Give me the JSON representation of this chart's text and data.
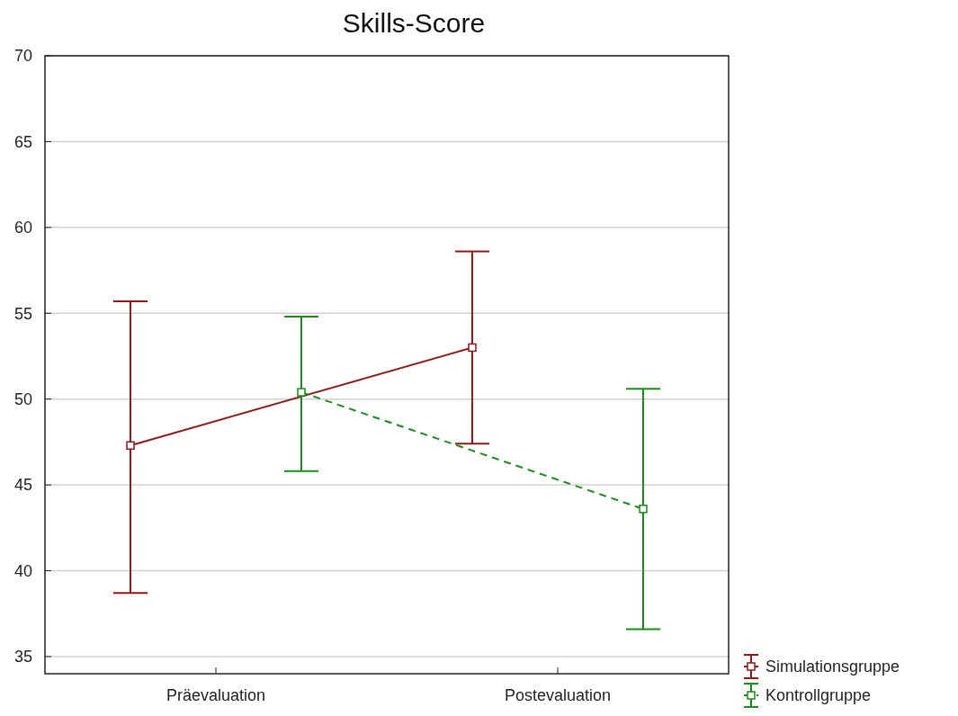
{
  "chart_data": {
    "type": "line",
    "title": "Skills-Score",
    "categories": [
      "Präevaluation",
      "Postevaluation"
    ],
    "series": [
      {
        "name": "Simulationsgruppe",
        "color": "#8b1a1a",
        "values": [
          47.3,
          53.0
        ],
        "errors": [
          [
            38.7,
            55.7
          ],
          [
            47.4,
            58.6
          ]
        ],
        "line_style": "solid"
      },
      {
        "name": "Kontrollgruppe",
        "color": "#1a8c1a",
        "values": [
          50.4,
          43.6
        ],
        "errors": [
          [
            45.8,
            54.8
          ],
          [
            36.6,
            50.6
          ]
        ],
        "line_style": "dashed"
      }
    ],
    "ylim": [
      34,
      70
    ],
    "yticks": [
      35,
      40,
      45,
      50,
      55,
      60,
      65,
      70
    ],
    "grid": "y",
    "legend": "bottom right",
    "marker": "square"
  }
}
